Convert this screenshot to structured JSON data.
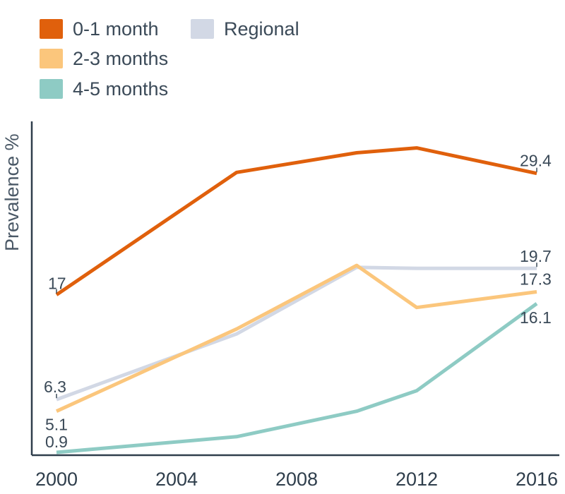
{
  "chart_data": {
    "type": "line",
    "ylabel": "Prevalence %",
    "xlabel": "",
    "x_ticks": [
      "2000",
      "2004",
      "2008",
      "2012",
      "2016"
    ],
    "xlim": [
      2000,
      2016
    ],
    "ylim": [
      0.9,
      35
    ],
    "grid": false,
    "legend_position": "top-left",
    "series": [
      {
        "name": "0-1 month",
        "color": "#e0600c",
        "x": [
          2000,
          2006,
          2010,
          2012,
          2016
        ],
        "y": [
          17,
          29.5,
          31.5,
          32,
          29.4
        ],
        "labels": {
          "start": "17",
          "end": "29.4"
        }
      },
      {
        "name": "Regional",
        "color": "#d2d8e5",
        "x": [
          2000,
          2006,
          2010,
          2012,
          2016
        ],
        "y": [
          6.3,
          13.0,
          19.8,
          19.7,
          19.7
        ],
        "labels": {
          "start": "6.3",
          "end": "19.7"
        }
      },
      {
        "name": "2-3 months",
        "color": "#fbc67c",
        "x": [
          2000,
          2006,
          2010,
          2012,
          2016
        ],
        "y": [
          5.1,
          13.5,
          20.0,
          15.7,
          17.3
        ],
        "labels": {
          "start": "5.1",
          "end": "17.3"
        }
      },
      {
        "name": "4-5 months",
        "color": "#8ecbc4",
        "x": [
          2000,
          2006,
          2010,
          2012,
          2016
        ],
        "y": [
          0.9,
          2.5,
          5.1,
          7.2,
          16.1
        ],
        "labels": {
          "start": "0.9",
          "end": "16.1"
        }
      }
    ]
  }
}
